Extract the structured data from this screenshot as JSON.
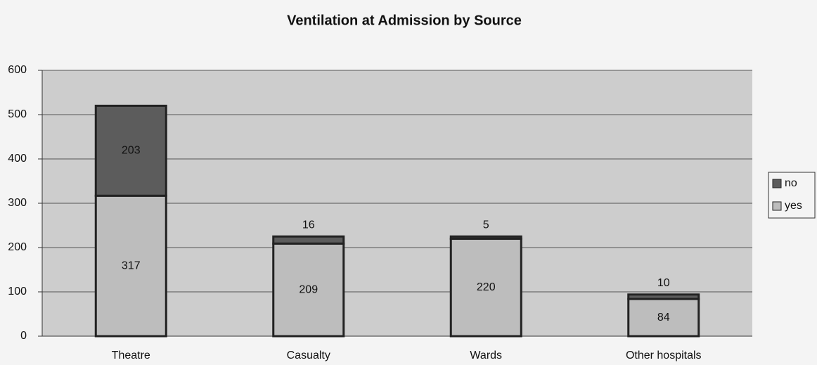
{
  "chart_data": {
    "type": "stacked_bar",
    "title": "Ventilation at Admission by Source",
    "categories": [
      "Theatre",
      "Casualty",
      "Wards",
      "Other hospitals"
    ],
    "series": [
      {
        "name": "yes",
        "color": "#bdbdbd",
        "values": [
          317,
          209,
          220,
          84
        ]
      },
      {
        "name": "no",
        "color": "#5c5c5c",
        "values": [
          203,
          16,
          5,
          10
        ]
      }
    ],
    "ylim": [
      0,
      600
    ],
    "yticks": [
      0,
      100,
      200,
      300,
      400,
      500,
      600
    ],
    "grid": true,
    "legend": "right"
  }
}
